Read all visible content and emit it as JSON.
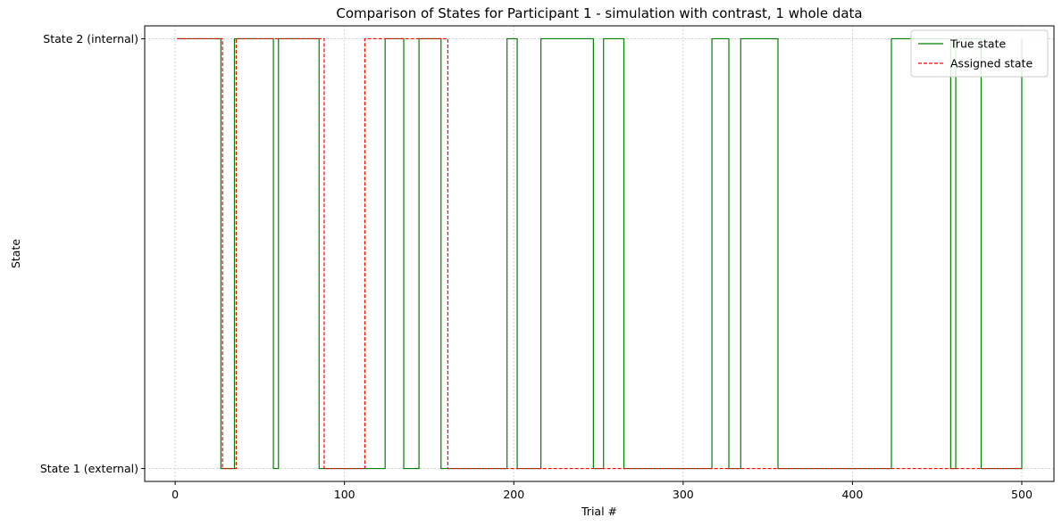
{
  "chart_data": {
    "type": "line",
    "title": "Comparison of States for Participant 1 - simulation with contrast, 1 whole data",
    "xlabel": "Trial #",
    "ylabel": "State",
    "xlim": [
      -18,
      519
    ],
    "ylim": [
      0.97,
      2.03
    ],
    "x_ticks": [
      0,
      100,
      200,
      300,
      400,
      500
    ],
    "y_ticks": [
      {
        "value": 1,
        "label": "State 1 (external)"
      },
      {
        "value": 2,
        "label": "State 2 (internal)"
      }
    ],
    "grid": true,
    "legend_position": "top-right",
    "x_start": 1,
    "x_end": 500,
    "series": [
      {
        "name": "True state",
        "color": "#008000",
        "style": "solid",
        "step": "post",
        "changes": [
          [
            1,
            2
          ],
          [
            27,
            1
          ],
          [
            35,
            2
          ],
          [
            58,
            1
          ],
          [
            61,
            2
          ],
          [
            85,
            1
          ],
          [
            124,
            2
          ],
          [
            135,
            1
          ],
          [
            144,
            2
          ],
          [
            157,
            1
          ],
          [
            196,
            2
          ],
          [
            202,
            1
          ],
          [
            216,
            2
          ],
          [
            247,
            1
          ],
          [
            253,
            2
          ],
          [
            265,
            1
          ],
          [
            317,
            2
          ],
          [
            327,
            1
          ],
          [
            334,
            2
          ],
          [
            356,
            1
          ],
          [
            423,
            2
          ],
          [
            458,
            1
          ],
          [
            461,
            2
          ],
          [
            476,
            1
          ],
          [
            500,
            2
          ]
        ]
      },
      {
        "name": "Assigned state",
        "color": "#ff0000",
        "style": "dashed",
        "step": "post",
        "changes": [
          [
            1,
            2
          ],
          [
            28,
            1
          ],
          [
            36,
            2
          ],
          [
            88,
            1
          ],
          [
            112,
            2
          ],
          [
            161,
            1
          ]
        ]
      }
    ]
  }
}
